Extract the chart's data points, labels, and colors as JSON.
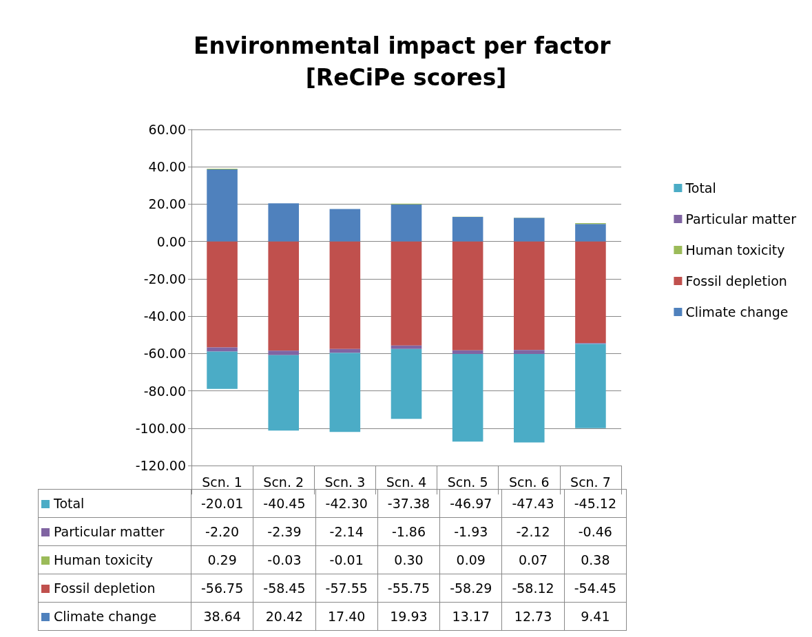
{
  "chart_data": {
    "type": "bar",
    "title": "Environmental impact per factor [ReCiPe scores]",
    "stacked": true,
    "categories": [
      "Scn. 1",
      "Scn. 2",
      "Scn. 3",
      "Scn. 4",
      "Scn. 5",
      "Scn. 6",
      "Scn. 7"
    ],
    "series": [
      {
        "name": "Climate change",
        "color": "#4f81bd",
        "values": [
          38.64,
          20.42,
          17.4,
          19.93,
          13.17,
          12.73,
          9.41
        ],
        "value_labels": [
          "38.64",
          "20.42",
          "17.40",
          "19.93",
          "13.17",
          "12.73",
          "9.41"
        ]
      },
      {
        "name": "Fossil depletion",
        "color": "#c0504d",
        "values": [
          -56.75,
          -58.45,
          -57.55,
          -55.75,
          -58.29,
          -58.12,
          -54.45
        ],
        "value_labels": [
          "-56.75",
          "-58.45",
          "-57.55",
          "-55.75",
          "-58.29",
          "-58.12",
          "-54.45"
        ]
      },
      {
        "name": "Human toxicity",
        "color": "#9bbb59",
        "values": [
          0.29,
          -0.03,
          -0.01,
          0.3,
          0.09,
          0.07,
          0.38
        ],
        "value_labels": [
          "0.29",
          "-0.03",
          "-0.01",
          "0.30",
          "0.09",
          "0.07",
          "0.38"
        ]
      },
      {
        "name": "Particular matter",
        "color": "#8064a2",
        "values": [
          -2.2,
          -2.39,
          -2.14,
          -1.86,
          -1.93,
          -2.12,
          -0.46
        ],
        "value_labels": [
          "-2.20",
          "-2.39",
          "-2.14",
          "-1.86",
          "-1.93",
          "-2.12",
          "-0.46"
        ]
      },
      {
        "name": "Total",
        "color": "#4bacc6",
        "values": [
          -20.01,
          -40.45,
          -42.3,
          -37.38,
          -46.97,
          -47.43,
          -45.12
        ],
        "value_labels": [
          "-20.01",
          "-40.45",
          "-42.30",
          "-37.38",
          "-46.97",
          "-47.43",
          "-45.12"
        ]
      }
    ],
    "ylim": [
      -120,
      60
    ],
    "yticks": [
      {
        "value": -120,
        "label": "-120.00"
      },
      {
        "value": -100,
        "label": "-100.00"
      },
      {
        "value": -80,
        "label": "-80.00"
      },
      {
        "value": -60,
        "label": "-60.00"
      },
      {
        "value": -40,
        "label": "-40.00"
      },
      {
        "value": -20,
        "label": "-20.00"
      },
      {
        "value": 0,
        "label": "0.00"
      },
      {
        "value": 20,
        "label": "20.00"
      },
      {
        "value": 40,
        "label": "40.00"
      },
      {
        "value": 60,
        "label": "60.00"
      }
    ],
    "grid": "y",
    "legend": "right"
  }
}
